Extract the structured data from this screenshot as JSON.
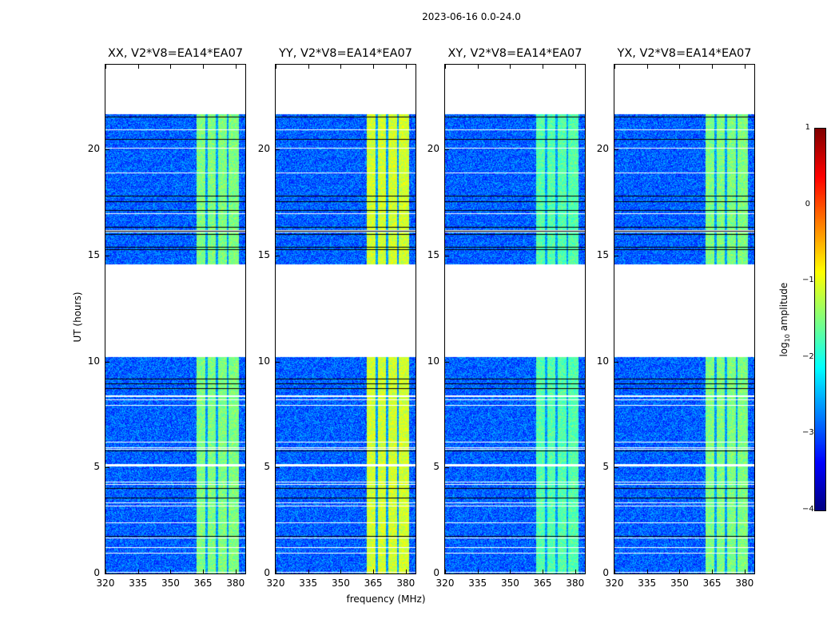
{
  "suptitle": "2023-06-16 0.0-24.0",
  "chart_data": {
    "type": "heatmap",
    "title": "2023-06-16 0.0-24.0",
    "xlabel": "frequency (MHz)",
    "ylabel": "UT (hours)",
    "xlim": [
      320,
      384.5
    ],
    "ylim": [
      0,
      24
    ],
    "xticks": [
      "320",
      "335",
      "350",
      "365",
      "380"
    ],
    "xtick_values": [
      320,
      335,
      350,
      365,
      380
    ],
    "yticks": [
      "0",
      "5",
      "10",
      "15",
      "20"
    ],
    "ytick_values": [
      0,
      5,
      10,
      15,
      20
    ],
    "data_time_ranges_hours": [
      [
        0,
        10.3
      ],
      [
        14.6,
        21.7
      ]
    ],
    "bright_band_mhz": [
      362,
      381.5
    ],
    "band_gaps_mhz": [
      366.5,
      371.3,
      376.2
    ],
    "panels": [
      {
        "title": "XX, V2*V8=EA14*EA07",
        "background_log_amp": -2.9,
        "band_log_amp": -1.5
      },
      {
        "title": "YY, V2*V8=EA14*EA07",
        "background_log_amp": -2.9,
        "band_log_amp": -1.1
      },
      {
        "title": "XY, V2*V8=EA14*EA07",
        "background_log_amp": -2.9,
        "band_log_amp": -1.7
      },
      {
        "title": "YX, V2*V8=EA14*EA07",
        "background_log_amp": -2.9,
        "band_log_amp": -1.5
      }
    ],
    "colorbar": {
      "label_main": "log",
      "label_sub": "10",
      "label_rest": " amplitude",
      "range": [
        -4,
        1
      ],
      "ticks": [
        "1",
        "0",
        "−1",
        "−2",
        "−3",
        "−4"
      ],
      "tick_values": [
        1,
        0,
        -1,
        -2,
        -3,
        -4
      ],
      "colormap": "jet"
    }
  }
}
